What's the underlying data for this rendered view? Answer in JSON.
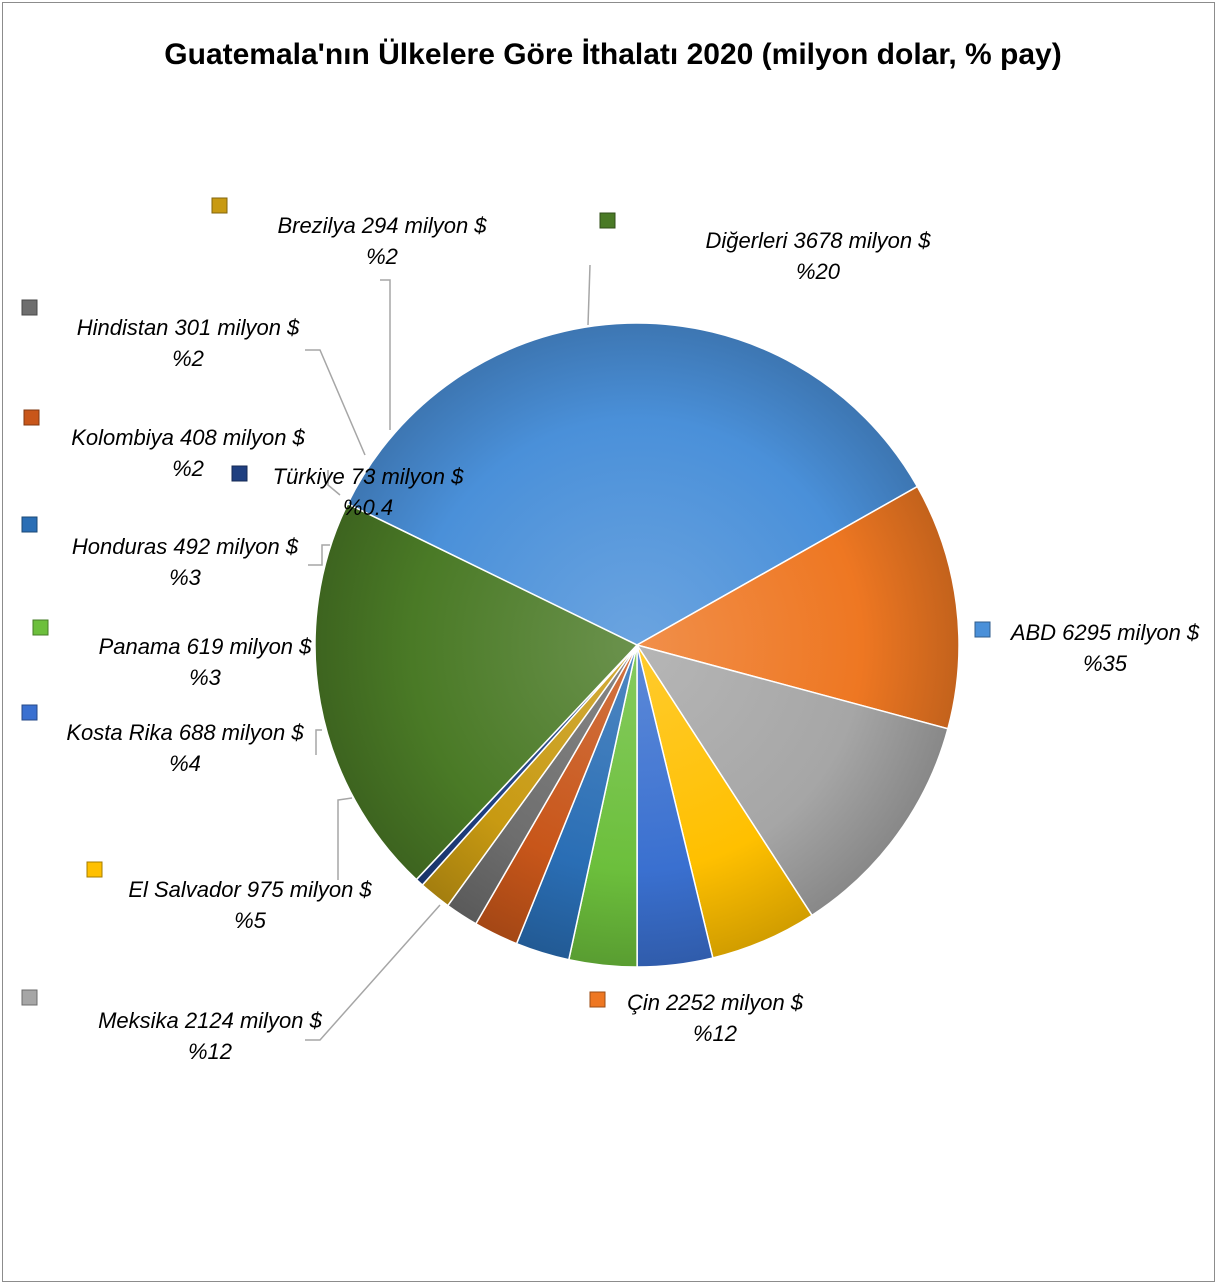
{
  "chart_data": {
    "type": "pie",
    "title": "Guatemala'nın Ülkelere Göre İthalatı 2020 (milyon dolar, % pay)",
    "unit": "milyon $",
    "slices": [
      {
        "name": "ABD",
        "value": 6295,
        "label_line1": "ABD 6295 milyon $",
        "label_line2": "%35",
        "color": "#4a90d9"
      },
      {
        "name": "Çin",
        "value": 2252,
        "label_line1": "Çin 2252 milyon $",
        "label_line2": "%12",
        "color": "#ee7722"
      },
      {
        "name": "Meksika",
        "value": 2124,
        "label_line1": "Meksika 2124 milyon $",
        "label_line2": "%12",
        "color": "#a6a6a6"
      },
      {
        "name": "El Salvador",
        "value": 975,
        "label_line1": "El Salvador 975 milyon $",
        "label_line2": "%5",
        "color": "#ffc000"
      },
      {
        "name": "Kosta Rika",
        "value": 688,
        "label_line1": "Kosta Rika 688 milyon $",
        "label_line2": "%4",
        "color": "#3a70d0"
      },
      {
        "name": "Panama",
        "value": 619,
        "label_line1": "Panama 619 milyon $",
        "label_line2": "%3",
        "color": "#6cbf3c"
      },
      {
        "name": "Honduras",
        "value": 492,
        "label_line1": "Honduras 492 milyon $",
        "label_line2": "%3",
        "color": "#2a6eb5"
      },
      {
        "name": "Kolombiya",
        "value": 408,
        "label_line1": "Kolombiya 408 milyon $",
        "label_line2": "%2",
        "color": "#c8561a"
      },
      {
        "name": "Hindistan",
        "value": 301,
        "label_line1": "Hindistan 301 milyon $",
        "label_line2": "%2",
        "color": "#6e6e6e"
      },
      {
        "name": "Brezilya",
        "value": 294,
        "label_line1": "Brezilya 294 milyon $",
        "label_line2": "%2",
        "color": "#c89a12"
      },
      {
        "name": "Türkiye",
        "value": 73,
        "label_line1": "Türkiye 73 milyon $",
        "label_line2": "%0.4",
        "color": "#1f3f80"
      },
      {
        "name": "Diğerleri",
        "value": 3678,
        "label_line1": "Diğerleri 3678 milyon $",
        "label_line2": "%20",
        "color": "#4a7a26"
      }
    ]
  }
}
